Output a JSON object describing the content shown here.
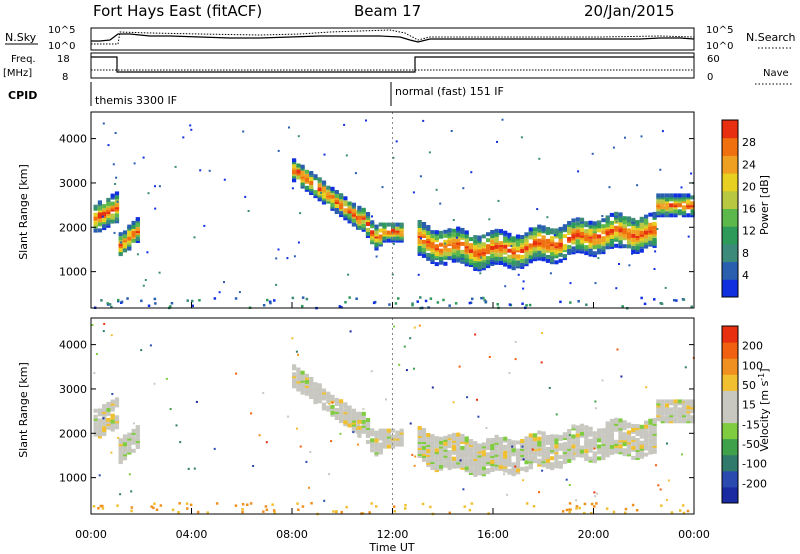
{
  "header": {
    "station": "Fort Hays East (fitACF)",
    "beam": "Beam 17",
    "date": "20/Jan/2015"
  },
  "top_panel": {
    "nsky_label": "N.Sky",
    "nsearch_label": "N.Search",
    "log_max": "10^5",
    "log_min": "10^0",
    "freq_label_1": "Freq.",
    "freq_label_2": "[MHz]",
    "freq_max": "18",
    "freq_min": "8",
    "nave_label": "Nave",
    "nave_max": "60",
    "nave_min": "0",
    "cpid_label": "CPID",
    "cpid_1": "themis 3300 IF",
    "cpid_2": "normal (fast) 151 IF"
  },
  "chart_data": [
    {
      "type": "heatmap",
      "xlabel": "Time UT",
      "ylabel": "Slant Range [km]",
      "x_ticks": [
        "00:00",
        "04:00",
        "08:00",
        "12:00",
        "16:00",
        "20:00",
        "00:00"
      ],
      "y_ticks": [
        1000,
        2000,
        3000,
        4000
      ],
      "xlim": [
        0,
        24
      ],
      "ylim": [
        180,
        4600
      ],
      "colorbar": {
        "label": "Power [dB]",
        "ticks": [
          "4",
          "8",
          "12",
          "16",
          "20",
          "24",
          "28"
        ],
        "colors": [
          "#1030e0",
          "#2a5fb0",
          "#3b8a7a",
          "#2e9a5a",
          "#5cb84a",
          "#b8c840",
          "#e8d020",
          "#f0a020",
          "#f07010",
          "#e83010"
        ]
      }
    },
    {
      "type": "heatmap",
      "xlabel": "Time UT",
      "ylabel": "Slant Range [km]",
      "x_ticks": [
        "00:00",
        "04:00",
        "08:00",
        "12:00",
        "16:00",
        "20:00",
        "00:00"
      ],
      "y_ticks": [
        1000,
        2000,
        3000,
        4000
      ],
      "xlim": [
        0,
        24
      ],
      "ylim": [
        180,
        4600
      ],
      "colorbar": {
        "label": "Velocity [m s^-1]",
        "ticks": [
          "200",
          "100",
          "50",
          "15",
          "-15",
          "-50",
          "-100",
          "-200"
        ],
        "colors": [
          "#1a2aa0",
          "#2a4ab0",
          "#2f7a6a",
          "#3fa24a",
          "#80cc40",
          "#c8c8c0",
          "#c8c8c0",
          "#f0c030",
          "#f09020",
          "#f06010",
          "#e83010"
        ]
      }
    }
  ]
}
